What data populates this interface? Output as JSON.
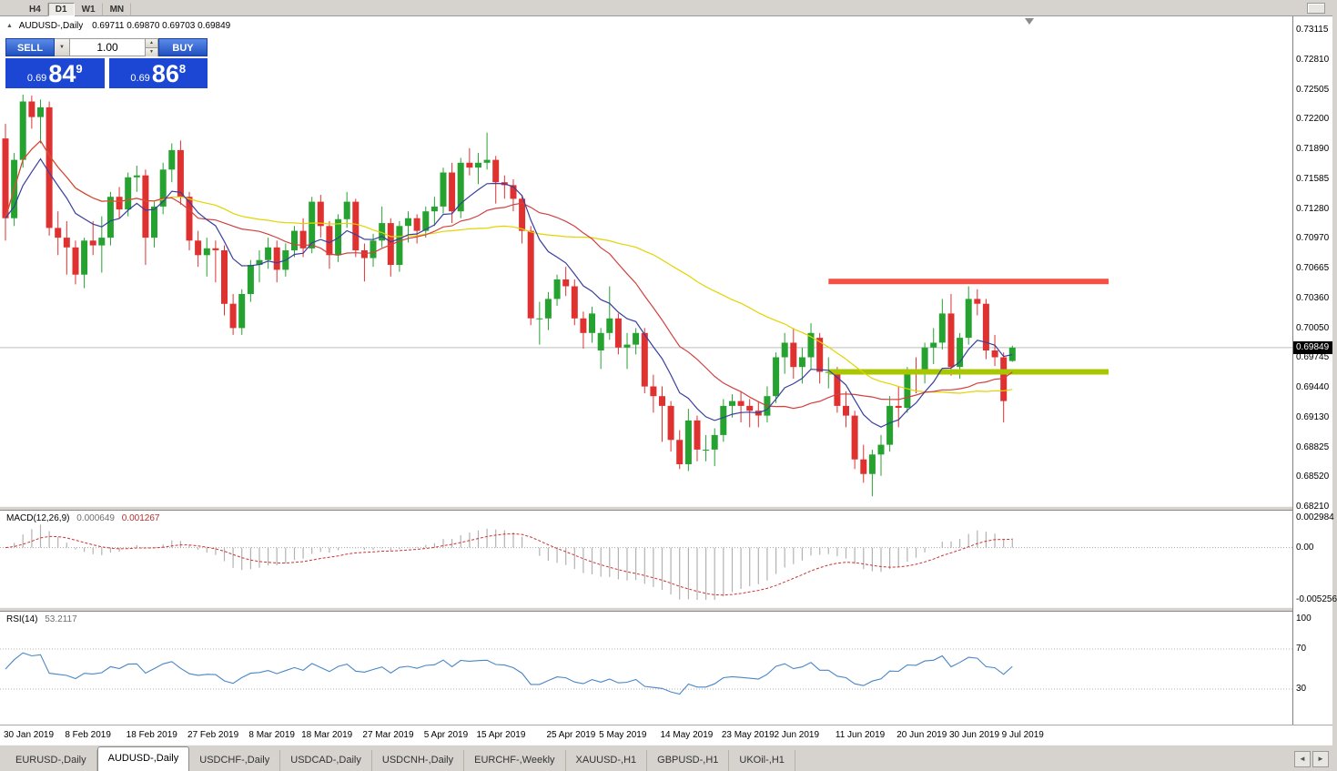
{
  "toolbar": {
    "timeframes": [
      "H4",
      "D1",
      "W1",
      "MN"
    ],
    "active": "D1"
  },
  "icons": {
    "panel_toggle": "▲",
    "combo_arrow": "▼",
    "spin_up": "▲",
    "spin_down": "▼",
    "tab_scroll_left": "◄",
    "tab_scroll_right": "►"
  },
  "chart": {
    "symbol_label": "AUDUSD-,Daily",
    "ohlc": "0.69711 0.69870 0.69703 0.69849"
  },
  "trade_panel": {
    "sell_label": "SELL",
    "buy_label": "BUY",
    "volume": "1.00",
    "sell": {
      "prefix": "0.69",
      "big": "84",
      "sup": "9"
    },
    "buy": {
      "prefix": "0.69",
      "big": "86",
      "sup": "8"
    }
  },
  "price_axis": {
    "labels": [
      "0.73115",
      "0.72810",
      "0.72505",
      "0.72200",
      "0.71890",
      "0.71585",
      "0.71280",
      "0.70970",
      "0.70665",
      "0.70360",
      "0.70050",
      "0.69745",
      "0.69440",
      "0.69130",
      "0.68825",
      "0.68520",
      "0.68210"
    ],
    "current_price": "0.69849"
  },
  "macd_panel": {
    "label": "MACD(12,26,9)",
    "value1": "0.000649",
    "value2": "0.001267",
    "axis": [
      {
        "text": "0.002984",
        "value": 0.002984
      },
      {
        "text": "0.00",
        "value": 0
      },
      {
        "text": "-0.005256",
        "value": -0.005256
      }
    ]
  },
  "rsi_panel": {
    "label": "RSI(14)",
    "value": "53.2117",
    "axis": [
      {
        "text": "100",
        "value": 100
      },
      {
        "text": "70",
        "value": 70
      },
      {
        "text": "30",
        "value": 30
      }
    ]
  },
  "time_axis": {
    "labels": [
      {
        "text": "30 Jan 2019",
        "idx": 0
      },
      {
        "text": "8 Feb 2019",
        "idx": 7
      },
      {
        "text": "18 Feb 2019",
        "idx": 14
      },
      {
        "text": "27 Feb 2019",
        "idx": 21
      },
      {
        "text": "8 Mar 2019",
        "idx": 28
      },
      {
        "text": "18 Mar 2019",
        "idx": 34
      },
      {
        "text": "27 Mar 2019",
        "idx": 41
      },
      {
        "text": "5 Apr 2019",
        "idx": 48
      },
      {
        "text": "15 Apr 2019",
        "idx": 54
      },
      {
        "text": "25 Apr 2019",
        "idx": 62
      },
      {
        "text": "5 May 2019",
        "idx": 68
      },
      {
        "text": "14 May 2019",
        "idx": 75
      },
      {
        "text": "23 May 2019",
        "idx": 82
      },
      {
        "text": "2 Jun 2019",
        "idx": 88
      },
      {
        "text": "11 Jun 2019",
        "idx": 95
      },
      {
        "text": "20 Jun 2019",
        "idx": 102
      },
      {
        "text": "30 Jun 2019",
        "idx": 108
      },
      {
        "text": "9 Jul 2019",
        "idx": 114
      }
    ]
  },
  "tabs": [
    {
      "label": "EURUSD-,Daily",
      "active": false
    },
    {
      "label": "AUDUSD-,Daily",
      "active": true
    },
    {
      "label": "USDCHF-,Daily",
      "active": false
    },
    {
      "label": "USDCAD-,Daily",
      "active": false
    },
    {
      "label": "USDCNH-,Daily",
      "active": false
    },
    {
      "label": "EURCHF-,Weekly",
      "active": false
    },
    {
      "label": "XAUUSD-,H1",
      "active": false
    },
    {
      "label": "GBPUSD-,H1",
      "active": false
    },
    {
      "label": "UKOil-,H1",
      "active": false
    }
  ],
  "chart_data": {
    "type": "candlestick",
    "symbol": "AUDUSD",
    "timeframe": "Daily",
    "price_range": [
      0.6821,
      0.73115
    ],
    "current_bar": {
      "open": 0.69711,
      "high": 0.6987,
      "low": 0.69703,
      "close": 0.69849
    },
    "colors": {
      "bull": "#25a22f",
      "bear": "#e03131",
      "bid_line": "#bdbdbd"
    },
    "candles": [
      [
        0.72,
        0.7215,
        0.7095,
        0.7118
      ],
      [
        0.7118,
        0.7185,
        0.711,
        0.7178
      ],
      [
        0.7178,
        0.7245,
        0.717,
        0.7238
      ],
      [
        0.7238,
        0.7244,
        0.721,
        0.7222
      ],
      [
        0.7222,
        0.724,
        0.7195,
        0.7232
      ],
      [
        0.7232,
        0.7238,
        0.71,
        0.7108
      ],
      [
        0.7108,
        0.7125,
        0.708,
        0.7098
      ],
      [
        0.7098,
        0.7115,
        0.706,
        0.7088
      ],
      [
        0.7088,
        0.7095,
        0.705,
        0.706
      ],
      [
        0.706,
        0.7098,
        0.7046,
        0.7095
      ],
      [
        0.7095,
        0.7115,
        0.708,
        0.709
      ],
      [
        0.709,
        0.712,
        0.7062,
        0.7098
      ],
      [
        0.7098,
        0.7145,
        0.709,
        0.714
      ],
      [
        0.714,
        0.715,
        0.7118,
        0.7127
      ],
      [
        0.7127,
        0.7165,
        0.712,
        0.716
      ],
      [
        0.716,
        0.7172,
        0.7145,
        0.7162
      ],
      [
        0.7162,
        0.7168,
        0.707,
        0.7098
      ],
      [
        0.7098,
        0.7135,
        0.7088,
        0.713
      ],
      [
        0.713,
        0.7175,
        0.7122,
        0.7168
      ],
      [
        0.7168,
        0.7195,
        0.7155,
        0.7188
      ],
      [
        0.7188,
        0.7198,
        0.7132,
        0.714
      ],
      [
        0.714,
        0.7145,
        0.7085,
        0.7095
      ],
      [
        0.7095,
        0.7105,
        0.7068,
        0.708
      ],
      [
        0.708,
        0.7098,
        0.7058,
        0.7087
      ],
      [
        0.7087,
        0.7095,
        0.7052,
        0.7085
      ],
      [
        0.7085,
        0.709,
        0.7018,
        0.703
      ],
      [
        0.703,
        0.704,
        0.6998,
        0.7005
      ],
      [
        0.7005,
        0.7045,
        0.6998,
        0.704
      ],
      [
        0.704,
        0.7075,
        0.7032,
        0.707
      ],
      [
        0.707,
        0.7085,
        0.7052,
        0.7075
      ],
      [
        0.7075,
        0.7098,
        0.7066,
        0.7088
      ],
      [
        0.7088,
        0.7095,
        0.7052,
        0.7065
      ],
      [
        0.7065,
        0.7092,
        0.7058,
        0.7085
      ],
      [
        0.7085,
        0.711,
        0.7078,
        0.7105
      ],
      [
        0.7105,
        0.7118,
        0.7078,
        0.7087
      ],
      [
        0.7087,
        0.714,
        0.7082,
        0.7135
      ],
      [
        0.7135,
        0.7142,
        0.7098,
        0.711
      ],
      [
        0.711,
        0.7115,
        0.7066,
        0.708
      ],
      [
        0.708,
        0.7122,
        0.7073,
        0.7117
      ],
      [
        0.7117,
        0.7145,
        0.7108,
        0.7135
      ],
      [
        0.7135,
        0.7138,
        0.7078,
        0.7085
      ],
      [
        0.7085,
        0.7092,
        0.7053,
        0.7077
      ],
      [
        0.7077,
        0.7102,
        0.7068,
        0.7095
      ],
      [
        0.7095,
        0.713,
        0.7088,
        0.7113
      ],
      [
        0.7113,
        0.7118,
        0.7058,
        0.707
      ],
      [
        0.707,
        0.7115,
        0.7063,
        0.711
      ],
      [
        0.711,
        0.7125,
        0.7093,
        0.7118
      ],
      [
        0.7118,
        0.7122,
        0.7092,
        0.7105
      ],
      [
        0.7105,
        0.713,
        0.7098,
        0.7125
      ],
      [
        0.7125,
        0.714,
        0.711,
        0.713
      ],
      [
        0.713,
        0.717,
        0.7123,
        0.7165
      ],
      [
        0.7165,
        0.7175,
        0.7113,
        0.7125
      ],
      [
        0.7125,
        0.718,
        0.7118,
        0.7175
      ],
      [
        0.7175,
        0.719,
        0.7162,
        0.717
      ],
      [
        0.717,
        0.7185,
        0.7153,
        0.7175
      ],
      [
        0.7175,
        0.7206,
        0.7168,
        0.7178
      ],
      [
        0.7178,
        0.7182,
        0.7133,
        0.7155
      ],
      [
        0.7155,
        0.7162,
        0.7138,
        0.7152
      ],
      [
        0.7152,
        0.7158,
        0.7125,
        0.7138
      ],
      [
        0.7138,
        0.7142,
        0.7092,
        0.7105
      ],
      [
        0.7105,
        0.711,
        0.7008,
        0.7015
      ],
      [
        0.7015,
        0.7032,
        0.6988,
        0.7015
      ],
      [
        0.7015,
        0.7042,
        0.7003,
        0.7035
      ],
      [
        0.7035,
        0.706,
        0.7028,
        0.7055
      ],
      [
        0.7055,
        0.7068,
        0.7038,
        0.7048
      ],
      [
        0.7048,
        0.7055,
        0.7008,
        0.7015
      ],
      [
        0.7015,
        0.7022,
        0.6984,
        0.7
      ],
      [
        0.7,
        0.7027,
        0.699,
        0.702
      ],
      [
        0.6982,
        0.7005,
        0.6963,
        0.7
      ],
      [
        0.7,
        0.7048,
        0.6993,
        0.7015
      ],
      [
        0.7015,
        0.702,
        0.6978,
        0.6985
      ],
      [
        0.6985,
        0.7,
        0.6963,
        0.6988
      ],
      [
        0.6988,
        0.7005,
        0.6978,
        0.7
      ],
      [
        0.7,
        0.7005,
        0.6938,
        0.6945
      ],
      [
        0.6945,
        0.6957,
        0.6918,
        0.6935
      ],
      [
        0.6935,
        0.6945,
        0.6888,
        0.6925
      ],
      [
        0.6925,
        0.693,
        0.6878,
        0.689
      ],
      [
        0.689,
        0.69,
        0.686,
        0.6865
      ],
      [
        0.6865,
        0.6922,
        0.6858,
        0.691
      ],
      [
        0.691,
        0.6915,
        0.6868,
        0.688
      ],
      [
        0.688,
        0.6895,
        0.6868,
        0.688
      ],
      [
        0.688,
        0.6902,
        0.6863,
        0.6895
      ],
      [
        0.6895,
        0.6932,
        0.6888,
        0.6925
      ],
      [
        0.6925,
        0.6937,
        0.6913,
        0.693
      ],
      [
        0.693,
        0.694,
        0.6908,
        0.6925
      ],
      [
        0.6925,
        0.6932,
        0.6903,
        0.692
      ],
      [
        0.692,
        0.693,
        0.6903,
        0.6915
      ],
      [
        0.6915,
        0.6945,
        0.6908,
        0.6935
      ],
      [
        0.6935,
        0.698,
        0.6928,
        0.6975
      ],
      [
        0.6975,
        0.7,
        0.6958,
        0.699
      ],
      [
        0.699,
        0.7005,
        0.6953,
        0.6965
      ],
      [
        0.6965,
        0.6985,
        0.6948,
        0.6975
      ],
      [
        0.6975,
        0.701,
        0.6963,
        0.7
      ],
      [
        0.6995,
        0.7,
        0.6948,
        0.696
      ],
      [
        0.696,
        0.6975,
        0.6943,
        0.696
      ],
      [
        0.696,
        0.6965,
        0.6918,
        0.6925
      ],
      [
        0.6925,
        0.694,
        0.6903,
        0.6915
      ],
      [
        0.6915,
        0.692,
        0.686,
        0.687
      ],
      [
        0.687,
        0.6885,
        0.6846,
        0.6855
      ],
      [
        0.6855,
        0.688,
        0.6832,
        0.6875
      ],
      [
        0.6875,
        0.6895,
        0.6853,
        0.6885
      ],
      [
        0.6885,
        0.6935,
        0.6878,
        0.6925
      ],
      [
        0.6925,
        0.6945,
        0.6903,
        0.6923
      ],
      [
        0.6923,
        0.6965,
        0.6918,
        0.696
      ],
      [
        0.696,
        0.6975,
        0.6938,
        0.6958
      ],
      [
        0.6958,
        0.699,
        0.6948,
        0.6985
      ],
      [
        0.6985,
        0.7005,
        0.6968,
        0.699
      ],
      [
        0.699,
        0.7035,
        0.6983,
        0.702
      ],
      [
        0.702,
        0.704,
        0.6956,
        0.6965
      ],
      [
        0.6965,
        0.7,
        0.6953,
        0.6995
      ],
      [
        0.6995,
        0.7048,
        0.6988,
        0.7035
      ],
      [
        0.7035,
        0.7045,
        0.7018,
        0.703
      ],
      [
        0.703,
        0.7035,
        0.6973,
        0.6982
      ],
      [
        0.6982,
        0.6998,
        0.6966,
        0.6975
      ],
      [
        0.6975,
        0.698,
        0.6908,
        0.693
      ],
      [
        0.69711,
        0.6987,
        0.69703,
        0.69849
      ]
    ],
    "moving_averages": [
      {
        "name": "ma-slow",
        "color": "#e3d400",
        "period": 40,
        "method": "sma"
      },
      {
        "name": "ma-medium",
        "color": "#d34040",
        "period": 18,
        "method": "sma"
      },
      {
        "name": "ma-fast",
        "color": "#3a3f9e",
        "period": 9,
        "method": "ema"
      }
    ],
    "objects": [
      {
        "name": "resistance-line",
        "price": 0.7053,
        "from": 94,
        "to": 126,
        "thickness": 6,
        "color": "#f55045"
      },
      {
        "name": "support-line",
        "price": 0.696,
        "from": 94,
        "to": 126,
        "thickness": 6,
        "color": "#a9c700"
      }
    ],
    "macd": {
      "fast": 12,
      "slow": 26,
      "signal": 9,
      "scale_max": 0.002984,
      "scale_min": -0.005256,
      "histogram_color": "#b2b2b2",
      "signal_color": "#cc3333"
    },
    "rsi": {
      "period": 14,
      "levels": [
        70,
        30
      ],
      "color": "#4a86c8",
      "scale": [
        0,
        100
      ]
    }
  }
}
